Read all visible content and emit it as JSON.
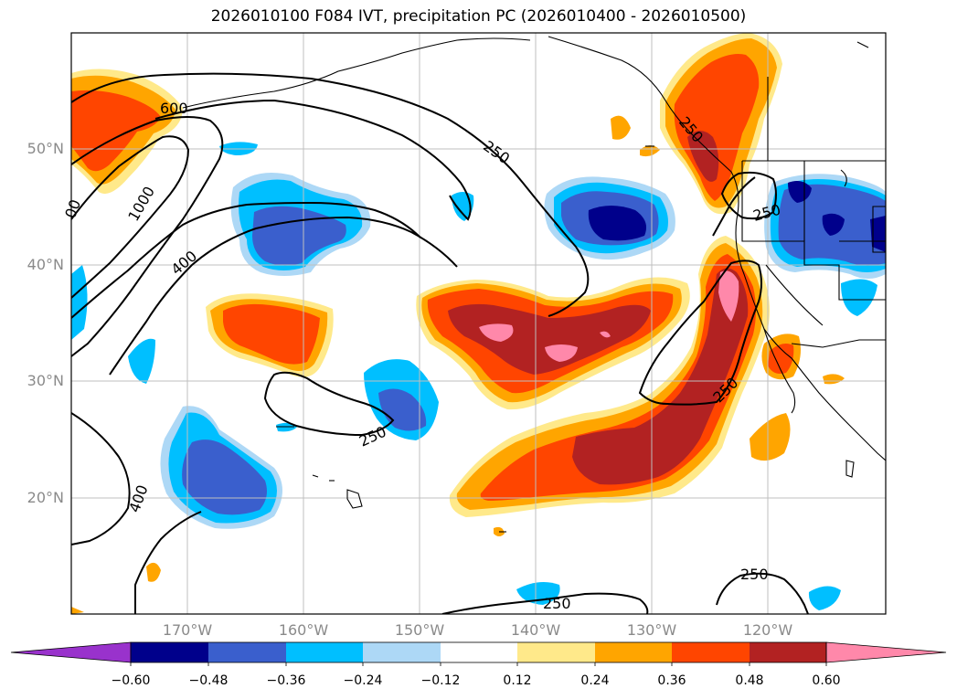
{
  "title": "2026010100 F084 IVT, precipitation PC (2026010400 - 2026010500)",
  "axes": {
    "lat_ticks": [
      "50°N",
      "40°N",
      "30°N",
      "20°N"
    ],
    "lon_ticks": [
      "170°W",
      "160°W",
      "150°W",
      "140°W",
      "130°W",
      "120°W"
    ]
  },
  "contour_labels": [
    "600",
    "1000",
    "400",
    "250",
    "250",
    "250",
    "250",
    "400",
    "250",
    "250",
    "250",
    "00"
  ],
  "colorbar": {
    "ticks": [
      "−0.60",
      "−0.48",
      "−0.36",
      "−0.24",
      "−0.12",
      "0.12",
      "0.24",
      "0.36",
      "0.48",
      "0.60"
    ],
    "colors": [
      "#9932cc",
      "#00008b",
      "#3a5fcd",
      "#00bfff",
      "#add8f6",
      "#ffffff",
      "#ffe98a",
      "#ffa500",
      "#ff4500",
      "#b22222",
      "#ff88aa"
    ]
  },
  "chart_data": {
    "type": "heatmap",
    "title": "2026010100 F084 IVT, precipitation PC (2026010400 - 2026010500)",
    "xlabel": "",
    "ylabel": "",
    "x_ticks": [
      "170°W",
      "160°W",
      "150°W",
      "140°W",
      "130°W",
      "120°W"
    ],
    "y_ticks": [
      "50°N",
      "40°N",
      "30°N",
      "20°N"
    ],
    "colorbar_levels": [
      -0.6,
      -0.48,
      -0.36,
      -0.24,
      -0.12,
      0.12,
      0.24,
      0.36,
      0.48,
      0.6
    ],
    "contour_levels": [
      250,
      400,
      600,
      1000
    ],
    "grid": true
  }
}
